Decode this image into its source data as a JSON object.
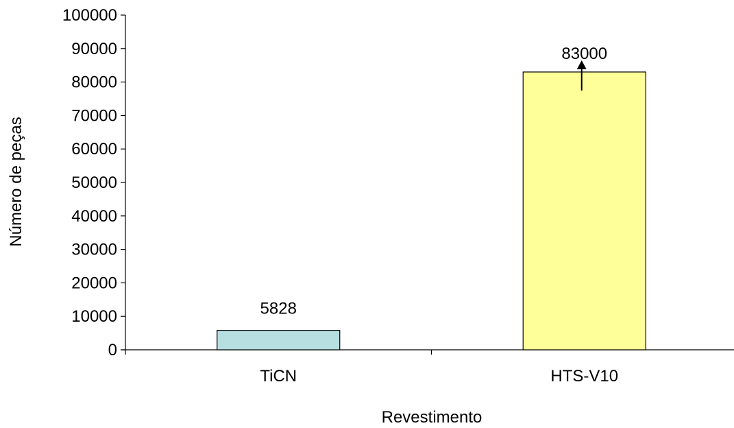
{
  "chart_data": {
    "type": "bar",
    "categories": [
      "TiCN",
      "HTS-V10"
    ],
    "values": [
      5828,
      83000
    ],
    "data_labels": [
      "5828",
      "83000"
    ],
    "bar_colors": [
      "#b7dee0",
      "#ffff99"
    ],
    "bar_outline_color": "#000000",
    "title": "",
    "xlabel": "Revestimento",
    "ylabel": "Número de peças",
    "ylim": [
      0,
      100000
    ],
    "y_ticks": [
      0,
      10000,
      20000,
      30000,
      40000,
      50000,
      60000,
      70000,
      80000,
      90000,
      100000
    ],
    "y_tick_labels": [
      "0",
      "10000",
      "20000",
      "30000",
      "40000",
      "50000",
      "60000",
      "70000",
      "80000",
      "90000",
      "100000"
    ],
    "grid": false,
    "legend": "none",
    "annotations": [
      {
        "type": "up-arrow",
        "category": "HTS-V10",
        "note": "value exceeds bar (lower bound)"
      }
    ]
  }
}
